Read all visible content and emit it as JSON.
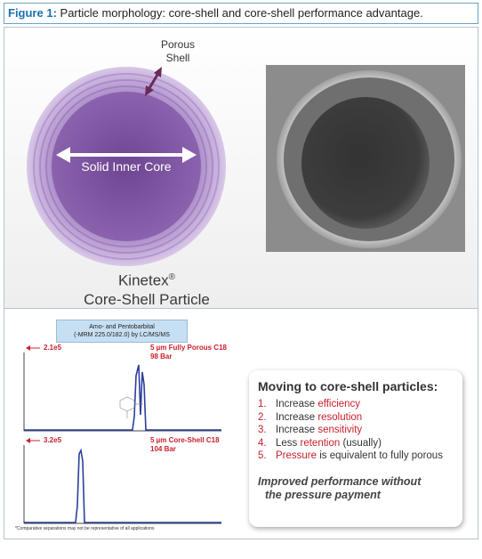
{
  "caption": {
    "label": "Figure 1:",
    "text": " Particle morphology: core-shell and core-shell performance advantage."
  },
  "particle": {
    "shell_label_line1": "Porous",
    "shell_label_line2": "Shell",
    "core_label": "Solid Inner Core",
    "name_line1": "Kinetex",
    "name_reg": "®",
    "name_line2": "Core-Shell Particle"
  },
  "chromatogram": {
    "title_line1": "Amo- and Pentobarbital",
    "title_line2": "(-MRM 225.0/182.0) by LC/MS/MS",
    "top": {
      "intensity": "2.1e5",
      "label_line1": "5 µm Fully Porous C18",
      "label_line2": "98 Bar"
    },
    "bottom": {
      "intensity": "3.2e5",
      "label_line1": "5 µm Core-Shell C18",
      "label_line2": "104 Bar"
    },
    "note": "*Comparative separations may not be representative of all applications"
  },
  "callout": {
    "title": "Moving to core-shell particles:",
    "items": [
      {
        "num": "1.",
        "pre": "Increase ",
        "hl": "efficiency",
        "post": ""
      },
      {
        "num": "2.",
        "pre": "Increase ",
        "hl": "resolution",
        "post": ""
      },
      {
        "num": "3.",
        "pre": "Increase ",
        "hl": "sensitivity",
        "post": ""
      },
      {
        "num": "4.",
        "pre": "Less ",
        "hl": "retention",
        "post": " (usually)"
      },
      {
        "num": "5.",
        "pre": "",
        "hl": "Pressure",
        "post": " is equivalent to fully porous"
      }
    ],
    "conclusion_line1": "Improved performance without",
    "conclusion_line2": "the pressure payment"
  },
  "colors": {
    "accent_red": "#c8202c",
    "particle_purple": "#7b4f9d",
    "caption_blue": "#1a6fb0",
    "trace_blue": "#2b3f9c"
  }
}
